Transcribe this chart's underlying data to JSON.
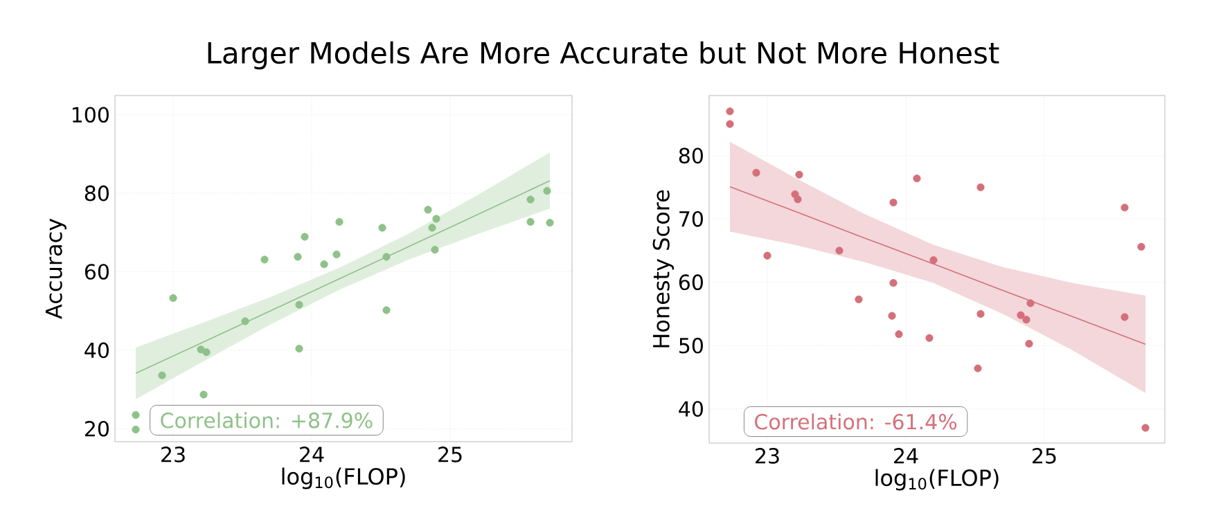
{
  "chart_data": [
    {
      "type": "scatter",
      "title": "Larger Models Are More Accurate but Not More Honest",
      "xlabel": "log$_{10}$(FLOP)",
      "ylabel": "Accuracy",
      "xlim": [
        22.58,
        25.88
      ],
      "ylim": [
        16.7,
        104.9
      ],
      "xticks": [
        23,
        24,
        25
      ],
      "yticks": [
        20,
        40,
        60,
        80,
        100
      ],
      "grid": true,
      "annotations": [
        "Correlation: +87.9%"
      ],
      "series": [
        {
          "color": "#8fc18a",
          "x": [
            22.73,
            22.73,
            22.92,
            23.0,
            23.2,
            23.24,
            23.22,
            23.52,
            23.66,
            23.9,
            23.91,
            23.91,
            23.95,
            24.09,
            24.18,
            24.2,
            24.51,
            24.54,
            24.54,
            24.84,
            24.87,
            24.9,
            24.89,
            25.58,
            25.58,
            25.7,
            25.72
          ],
          "values": [
            23.5,
            19.8,
            33.6,
            53.3,
            40.2,
            39.5,
            28.7,
            47.4,
            63.1,
            63.8,
            51.6,
            40.4,
            68.9,
            61.9,
            64.4,
            72.7,
            71.2,
            63.8,
            50.2,
            75.8,
            71.2,
            73.5,
            65.6,
            78.4,
            72.7,
            80.6,
            72.5
          ]
        },
        {
          "type": "line",
          "color": "#8fc18a",
          "x": [
            22.73,
            23.2,
            23.7,
            24.2,
            24.7,
            25.2,
            25.72
          ],
          "values": [
            34.1,
            41.8,
            50.0,
            58.2,
            66.4,
            74.6,
            83.2
          ],
          "lower": [
            27.5,
            36.8,
            46.5,
            55.4,
            63.1,
            69.6,
            76.1
          ],
          "upper": [
            40.7,
            46.8,
            53.5,
            61.0,
            69.7,
            79.6,
            90.4
          ]
        }
      ]
    },
    {
      "type": "scatter",
      "xlabel": "log$_{10}$(FLOP)",
      "ylabel": "Honesty Score",
      "xlim": [
        22.58,
        25.87
      ],
      "ylim": [
        34.6,
        89.5
      ],
      "xticks": [
        23,
        24,
        25
      ],
      "yticks": [
        40,
        50,
        60,
        70,
        80
      ],
      "grid": true,
      "annotations": [
        "Correlation: -61.4%"
      ],
      "series": [
        {
          "color": "#d4707b",
          "x": [
            22.73,
            22.73,
            22.92,
            23.0,
            23.2,
            23.22,
            23.23,
            23.52,
            23.66,
            23.91,
            23.91,
            23.9,
            23.95,
            24.08,
            24.17,
            24.2,
            24.54,
            24.54,
            24.52,
            24.83,
            24.87,
            24.9,
            24.89,
            25.58,
            25.58,
            25.7,
            25.73
          ],
          "values": [
            87.0,
            85.0,
            77.3,
            64.2,
            73.9,
            73.1,
            77.0,
            65.0,
            57.3,
            72.6,
            59.9,
            54.7,
            51.8,
            76.4,
            51.2,
            63.5,
            75.0,
            55.0,
            46.4,
            54.8,
            54.1,
            56.7,
            50.3,
            71.8,
            54.5,
            65.6,
            37.0
          ]
        },
        {
          "type": "line",
          "color": "#d4707b",
          "x": [
            22.73,
            23.2,
            23.7,
            24.2,
            24.7,
            25.2,
            25.73
          ],
          "values": [
            75.1,
            71.2,
            67.0,
            62.9,
            58.7,
            54.6,
            50.2
          ],
          "lower": [
            68.0,
            65.9,
            63.2,
            59.9,
            55.0,
            49.3,
            42.5
          ],
          "upper": [
            82.2,
            76.5,
            70.8,
            65.9,
            62.4,
            59.9,
            57.9
          ]
        }
      ]
    }
  ]
}
